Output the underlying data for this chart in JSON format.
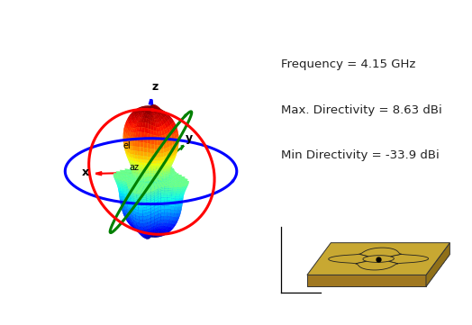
{
  "freq_text": "Frequency = 4.15 GHz",
  "max_dir_text": "Max. Directivity = 8.63 dBi",
  "min_dir_text": "Min Directivity = -33.9 dBi",
  "axis_x_label": "x",
  "axis_y_label": "y",
  "axis_z_label": "z",
  "el_label": "el",
  "az_label": "az",
  "bg_color": "#ffffff",
  "text_color": "#222222",
  "colormap": "jet",
  "antenna_color": "#c8a832",
  "antenna_dark": "#a07820",
  "view_elev": 22,
  "view_azim": -70,
  "xlim": [
    -1.5,
    1.5
  ],
  "ylim": [
    -1.5,
    1.5
  ],
  "zlim": [
    -0.7,
    1.6
  ]
}
